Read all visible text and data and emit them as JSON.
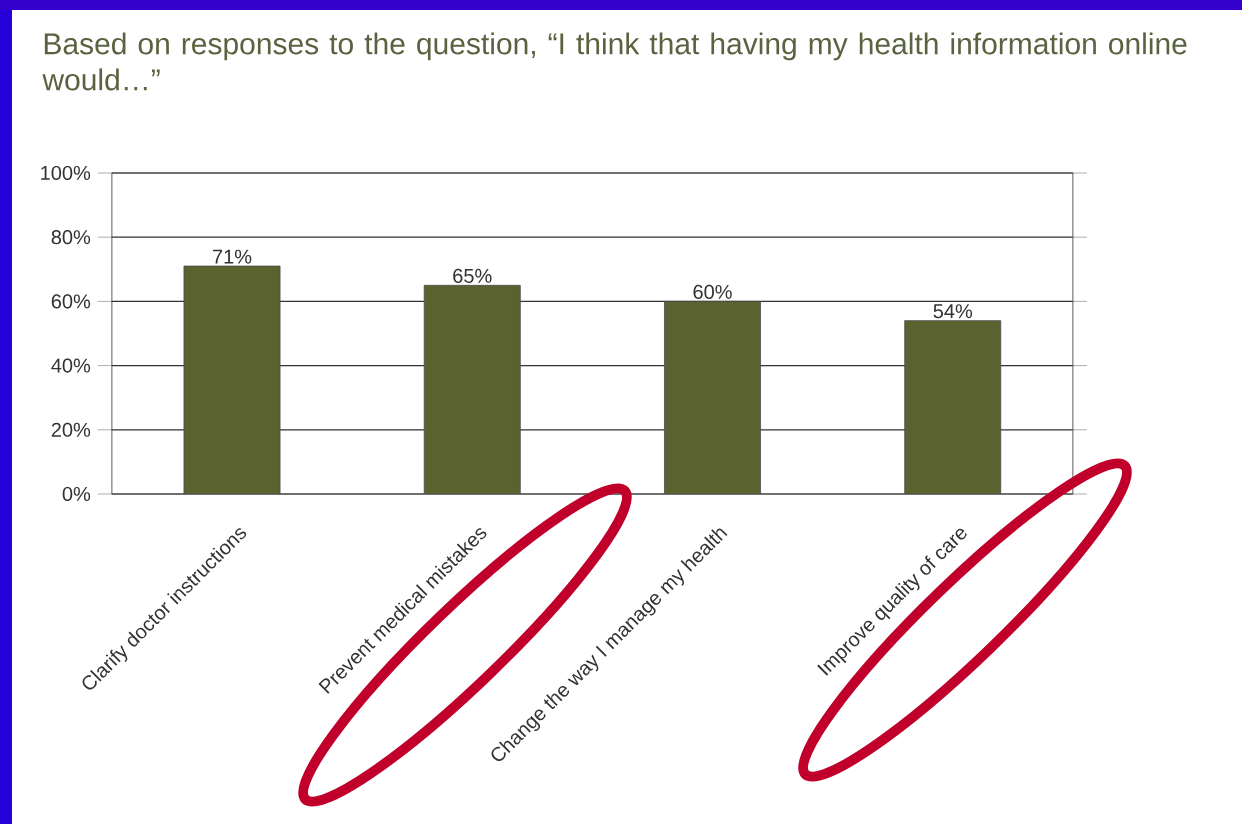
{
  "chart_data": {
    "type": "bar",
    "title": "Based on responses to the question, “I think that having my health information online would…”",
    "categories": [
      "Clarify doctor instructions",
      "Prevent medical mistakes",
      "Change the way I manage my health",
      "Improve quality of care"
    ],
    "values": [
      71,
      65,
      60,
      54
    ],
    "value_labels": [
      "71%",
      "65%",
      "60%",
      "54%"
    ],
    "color": "#5a6330",
    "ylim": [
      0,
      100
    ],
    "yticks": [
      {
        "value": 0,
        "label": "0%"
      },
      {
        "value": 20,
        "label": "20%"
      },
      {
        "value": 40,
        "label": "40%"
      },
      {
        "value": 60,
        "label": "60%"
      },
      {
        "value": 80,
        "label": "80%"
      },
      {
        "value": 100,
        "label": "100%"
      }
    ],
    "grid": "y"
  }
}
